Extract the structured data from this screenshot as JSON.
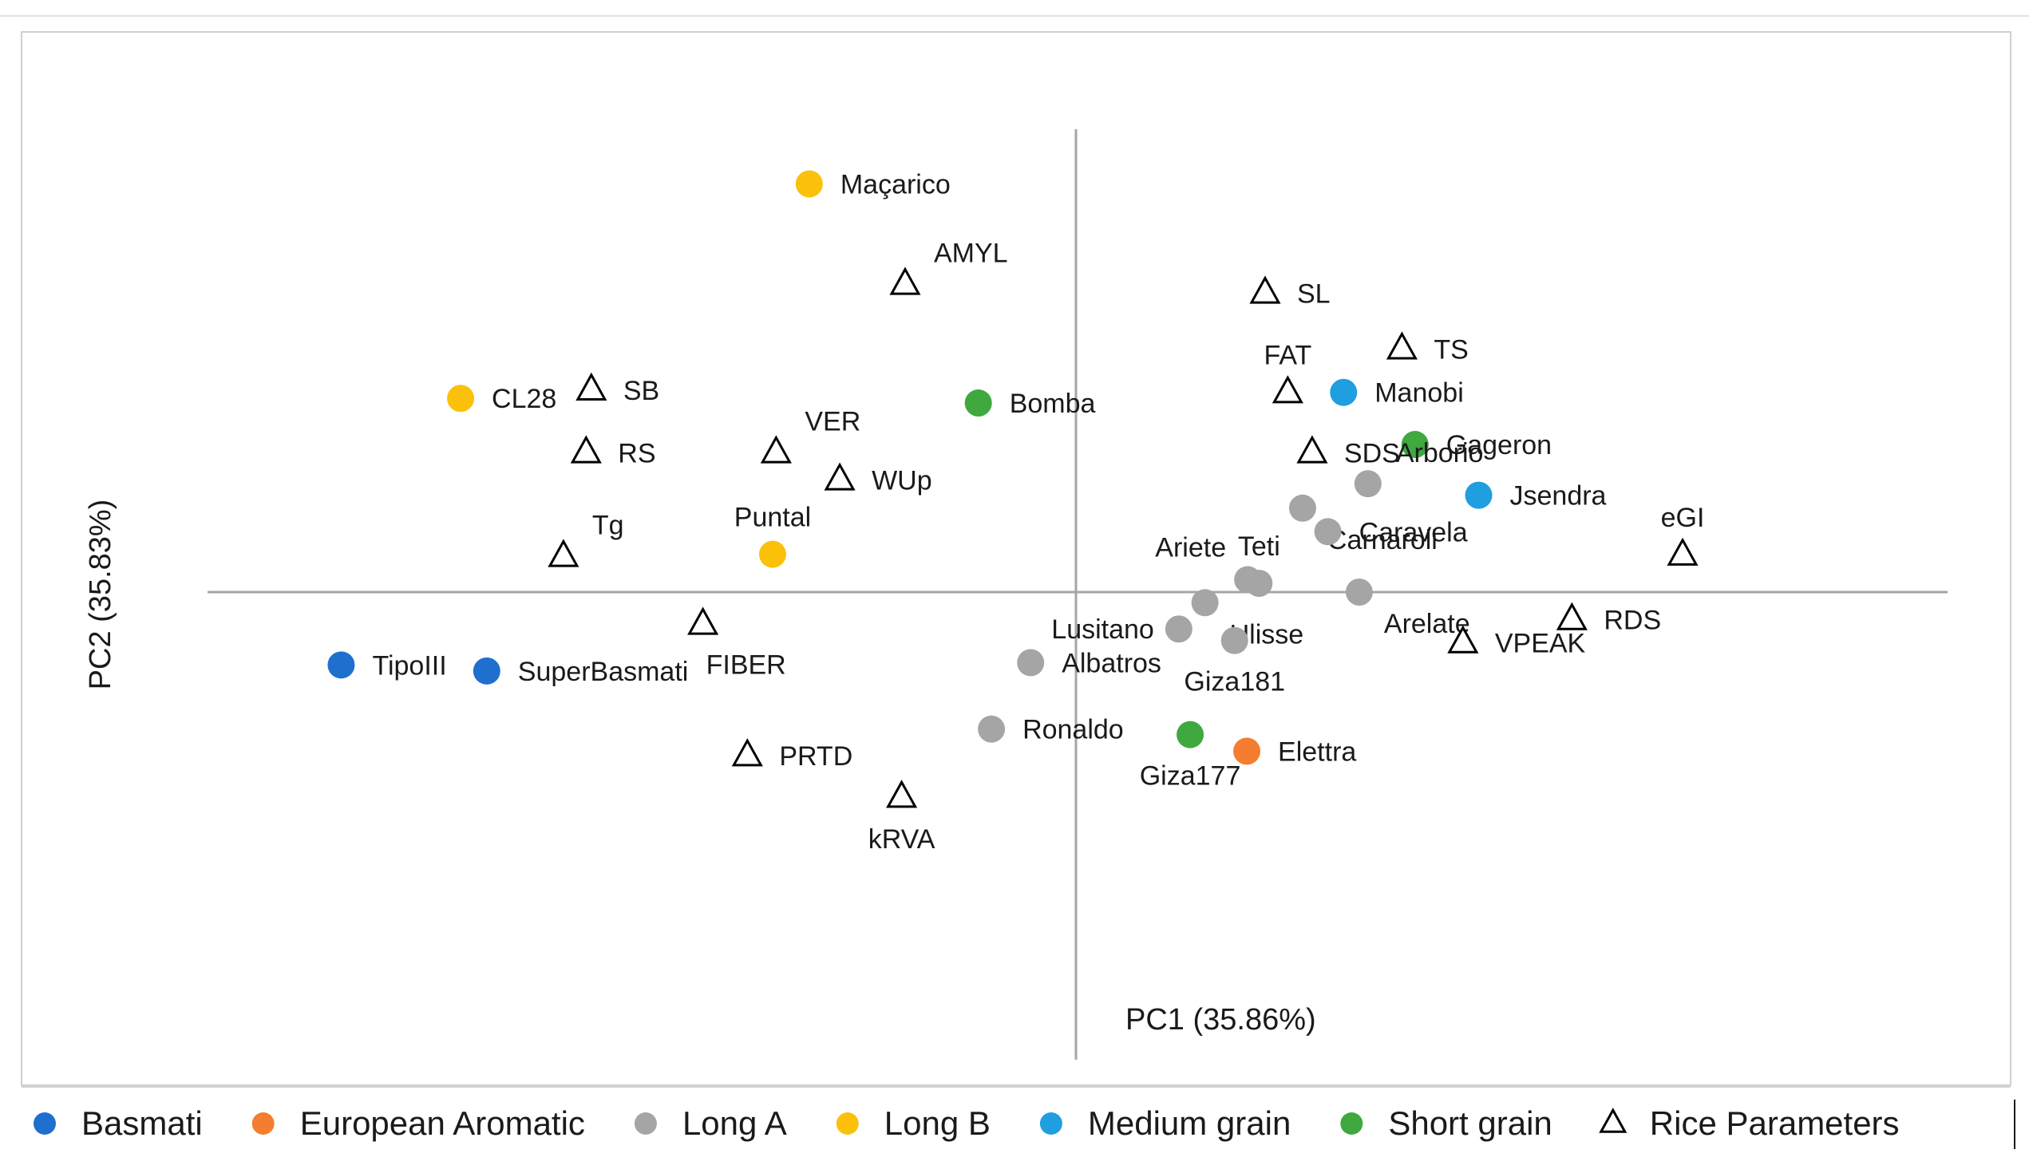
{
  "chart_data": {
    "type": "scatter",
    "title": "",
    "xlabel": "PC1 (35.86%)",
    "ylabel": "PC2  (35.83%)",
    "xlim": [
      -1,
      1
    ],
    "ylim": [
      -1,
      1
    ],
    "grid": false,
    "legend_position": "bottom",
    "groups": [
      {
        "key": "basmati",
        "name": "Basmati",
        "color": "#1f6fcf",
        "marker": "circle"
      },
      {
        "key": "european",
        "name": "European Aromatic",
        "color": "#f47d30",
        "marker": "circle"
      },
      {
        "key": "longa",
        "name": "Long A",
        "color": "#a5a5a5",
        "marker": "circle"
      },
      {
        "key": "longb",
        "name": "Long B",
        "color": "#fbc10a",
        "marker": "circle"
      },
      {
        "key": "medium",
        "name": "Medium grain",
        "color": "#1f9ee0",
        "marker": "circle"
      },
      {
        "key": "short",
        "name": "Short grain",
        "color": "#3fa83f",
        "marker": "circle"
      },
      {
        "key": "params",
        "name": "Rice Parameters",
        "color": "#000000",
        "marker": "triangle"
      }
    ],
    "points": [
      {
        "label": "Maçarico",
        "group": "longb",
        "x": -0.306,
        "y": 0.885,
        "label_pos": "right"
      },
      {
        "label": "CL28",
        "group": "longb",
        "x": -0.706,
        "y": 0.42,
        "label_pos": "right"
      },
      {
        "label": "Puntal",
        "group": "longb",
        "x": -0.348,
        "y": 0.082,
        "label_pos": "above"
      },
      {
        "label": "Bomba",
        "group": "short",
        "x": -0.112,
        "y": 0.41,
        "label_pos": "right"
      },
      {
        "label": "Gageron",
        "group": "short",
        "x": 0.389,
        "y": 0.32,
        "label_pos": "right"
      },
      {
        "label": "Giza177",
        "group": "short",
        "x": 0.131,
        "y": -0.309,
        "label_pos": "below"
      },
      {
        "label": "Manobi",
        "group": "medium",
        "x": 0.307,
        "y": 0.433,
        "label_pos": "right"
      },
      {
        "label": "Jsendra",
        "group": "medium",
        "x": 0.462,
        "y": 0.21,
        "label_pos": "right"
      },
      {
        "label": "TipoIII",
        "group": "basmati",
        "x": -0.843,
        "y": -0.158,
        "label_pos": "right"
      },
      {
        "label": "SuperBasmati",
        "group": "basmati",
        "x": -0.676,
        "y": -0.171,
        "label_pos": "right"
      },
      {
        "label": "Elettra",
        "group": "european",
        "x": 0.196,
        "y": -0.345,
        "label_pos": "right"
      },
      {
        "label": "Arborio",
        "group": "longa",
        "x": 0.335,
        "y": 0.235,
        "label_pos": "upper-right"
      },
      {
        "label": "Carnaroli",
        "group": "longa",
        "x": 0.26,
        "y": 0.182,
        "label_pos": "lower-right"
      },
      {
        "label": "Caravela",
        "group": "longa",
        "x": 0.289,
        "y": 0.131,
        "label_pos": "right"
      },
      {
        "label": "Teti",
        "group": "longa",
        "x": 0.21,
        "y": 0.019,
        "label_pos": "above"
      },
      {
        "label": "Ariete",
        "group": "longa",
        "x": 0.197,
        "y": 0.027,
        "label_pos": "upper-left"
      },
      {
        "label": "Ulisse",
        "group": "longa",
        "x": 0.148,
        "y": -0.023,
        "label_pos": "lower-right"
      },
      {
        "label": "Arelate",
        "group": "longa",
        "x": 0.325,
        "y": 0.0,
        "label_pos": "lower-right"
      },
      {
        "label": "Lusitano",
        "group": "longa",
        "x": 0.118,
        "y": -0.08,
        "label_pos": "left"
      },
      {
        "label": "Albatros",
        "group": "longa",
        "x": -0.052,
        "y": -0.153,
        "label_pos": "right"
      },
      {
        "label": "Giza181",
        "group": "longa",
        "x": 0.182,
        "y": -0.105,
        "label_pos": "below"
      },
      {
        "label": "Ronaldo",
        "group": "longa",
        "x": -0.097,
        "y": -0.297,
        "label_pos": "right"
      }
    ],
    "parameters": [
      {
        "label": "AMYL",
        "x": -0.196,
        "y": 0.667,
        "label_pos": "upper-right"
      },
      {
        "label": "SL",
        "x": 0.217,
        "y": 0.648,
        "label_pos": "right"
      },
      {
        "label": "TS",
        "x": 0.374,
        "y": 0.527,
        "label_pos": "right"
      },
      {
        "label": "FAT",
        "x": 0.243,
        "y": 0.432,
        "label_pos": "above"
      },
      {
        "label": "SB",
        "x": -0.556,
        "y": 0.438,
        "label_pos": "right"
      },
      {
        "label": "RS",
        "x": -0.562,
        "y": 0.302,
        "label_pos": "right"
      },
      {
        "label": "VER",
        "x": -0.344,
        "y": 0.302,
        "label_pos": "upper-right"
      },
      {
        "label": "WUp",
        "x": -0.271,
        "y": 0.243,
        "label_pos": "right"
      },
      {
        "label": "SDS",
        "x": 0.271,
        "y": 0.302,
        "label_pos": "right"
      },
      {
        "label": "Tg",
        "x": -0.588,
        "y": 0.077,
        "label_pos": "upper-right"
      },
      {
        "label": "eGI",
        "x": 0.696,
        "y": 0.08,
        "label_pos": "above"
      },
      {
        "label": "RDS",
        "x": 0.569,
        "y": -0.06,
        "label_pos": "right"
      },
      {
        "label": "VPEAK",
        "x": 0.444,
        "y": -0.11,
        "label_pos": "right"
      },
      {
        "label": "FIBER",
        "x": -0.428,
        "y": -0.07,
        "label_pos": "below-right"
      },
      {
        "label": "PRTD",
        "x": -0.377,
        "y": -0.355,
        "label_pos": "right"
      },
      {
        "label": "kRVA",
        "x": -0.2,
        "y": -0.445,
        "label_pos": "below"
      }
    ]
  }
}
